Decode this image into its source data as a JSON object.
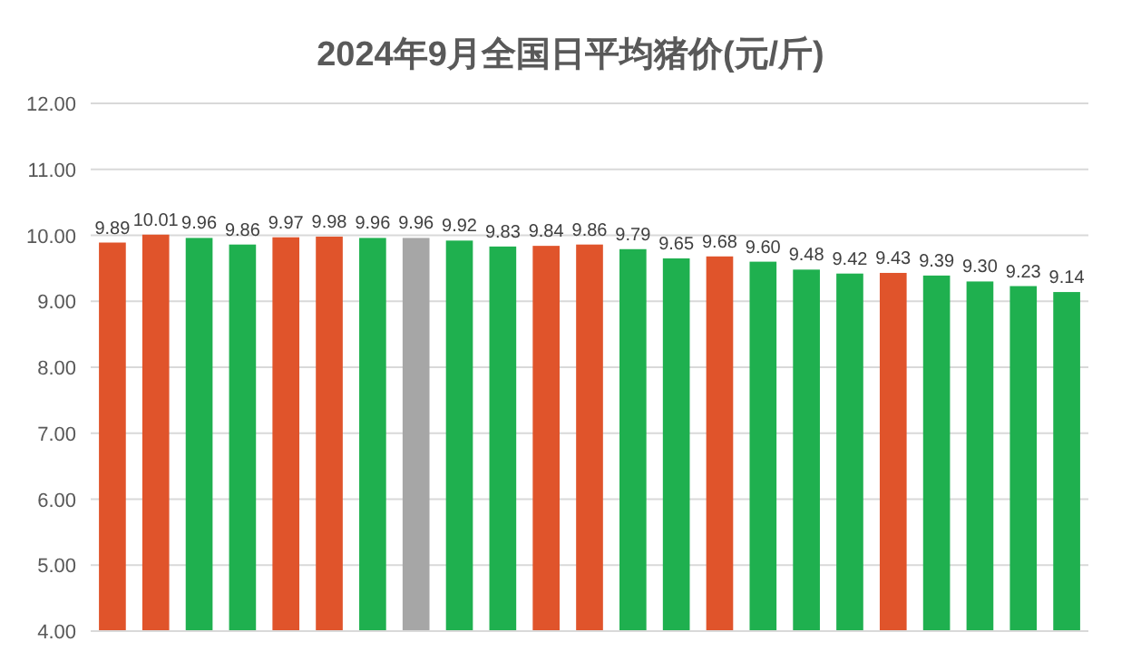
{
  "chart_data": {
    "type": "bar",
    "title": "2024年9月全国日平均猪价(元/斤)",
    "categories": [
      null,
      null,
      null,
      null,
      null,
      null,
      null,
      null,
      null,
      null,
      null,
      null,
      null,
      null,
      null,
      null,
      null,
      null,
      null,
      null,
      null,
      null,
      null
    ],
    "values": [
      9.89,
      10.01,
      9.96,
      9.86,
      9.97,
      9.98,
      9.96,
      9.96,
      9.92,
      9.83,
      9.84,
      9.86,
      9.79,
      9.65,
      9.68,
      9.6,
      9.48,
      9.42,
      9.43,
      9.39,
      9.3,
      9.23,
      9.14
    ],
    "value_labels": [
      "9.89",
      "10.01",
      "9.96",
      "9.86",
      "9.97",
      "9.98",
      "9.96",
      "9.96",
      "9.92",
      "9.83",
      "9.84",
      "9.86",
      "9.79",
      "9.65",
      "9.68",
      "9.60",
      "9.48",
      "9.42",
      "9.43",
      "9.39",
      "9.30",
      "9.23",
      "9.14"
    ],
    "colors": [
      "#e0542b",
      "#e0542b",
      "#1fb04f",
      "#1fb04f",
      "#e0542b",
      "#e0542b",
      "#1fb04f",
      "#a6a6a6",
      "#1fb04f",
      "#1fb04f",
      "#e0542b",
      "#e0542b",
      "#1fb04f",
      "#1fb04f",
      "#e0542b",
      "#1fb04f",
      "#1fb04f",
      "#1fb04f",
      "#e0542b",
      "#1fb04f",
      "#1fb04f",
      "#1fb04f",
      "#1fb04f"
    ],
    "ylim": [
      4,
      12
    ],
    "yticks": [
      {
        "value": 4,
        "label": "4.00"
      },
      {
        "value": 5,
        "label": "5.00"
      },
      {
        "value": 6,
        "label": "6.00"
      },
      {
        "value": 7,
        "label": "7.00"
      },
      {
        "value": 8,
        "label": "8.00"
      },
      {
        "value": 9,
        "label": "9.00"
      },
      {
        "value": 10,
        "label": "10.00"
      },
      {
        "value": 11,
        "label": "11.00"
      },
      {
        "value": 12,
        "label": "12.00"
      }
    ],
    "grid": "y"
  }
}
